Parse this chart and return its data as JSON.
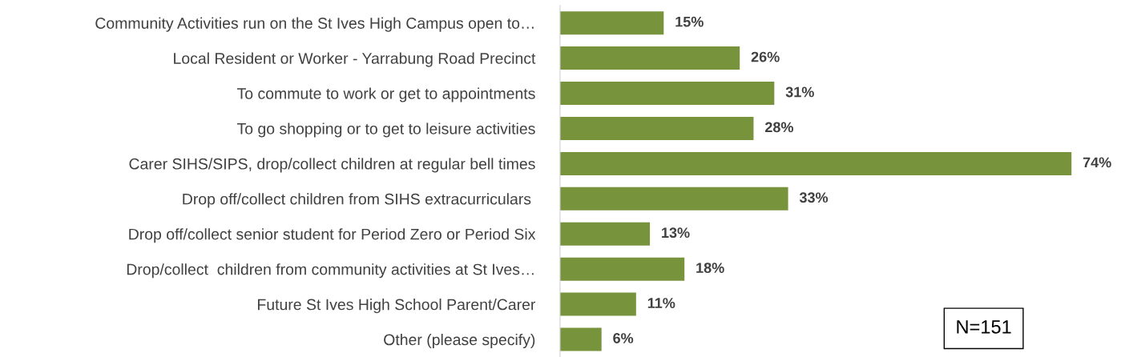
{
  "chart_data": {
    "type": "bar",
    "orientation": "horizontal",
    "categories": [
      "Community Activities run on the St Ives High Campus open to…",
      "Local Resident or Worker - Yarrabung Road Precinct",
      "To commute to work or get to appointments",
      "To go shopping or to get to leisure activities",
      "Carer SIHS/SIPS, drop/collect children at regular bell times",
      "Drop off/collect children from SIHS extracurriculars ",
      "Drop off/collect senior student for Period Zero or Period Six",
      "Drop/collect  children from community activities at St Ives…",
      "Future St Ives High School Parent/Carer",
      "Other (please specify)"
    ],
    "values": [
      15,
      26,
      31,
      28,
      74,
      33,
      13,
      18,
      11,
      6
    ],
    "value_labels": [
      "15%",
      "26%",
      "31%",
      "28%",
      "74%",
      "33%",
      "13%",
      "18%",
      "11%",
      "6%"
    ],
    "color": "#77933c",
    "annotations": [
      "N=151"
    ],
    "grid": false,
    "legend": false
  }
}
